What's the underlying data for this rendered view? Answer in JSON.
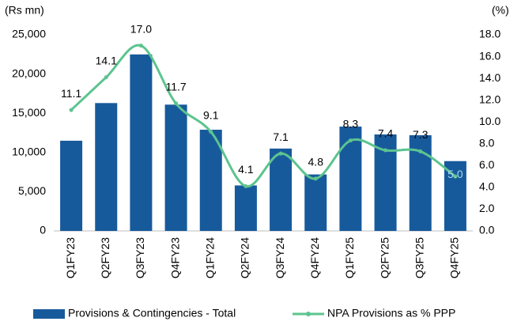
{
  "chart_data": {
    "type": "bar_line",
    "y_label": "(Rs mn)",
    "y2_label": "(%)",
    "categories": [
      "Q1FY23",
      "Q2FY23",
      "Q3FY23",
      "Q4FY23",
      "Q1FY24",
      "Q2FY24",
      "Q3FY24",
      "Q4FY24",
      "Q1FY25",
      "Q2FY25",
      "Q3FY25",
      "Q4FY25"
    ],
    "series": [
      {
        "name": "Provisions & Contingencies - Total",
        "type": "bar",
        "color": "#175a9c",
        "values": [
          11500,
          16300,
          22500,
          16100,
          12900,
          5800,
          10500,
          7200,
          13300,
          12300,
          12200,
          8900
        ]
      },
      {
        "name": "NPA Provisions as % PPP",
        "type": "line",
        "axis": "y2",
        "color": "#5cc48e",
        "values": [
          11.1,
          14.1,
          17.0,
          11.7,
          9.1,
          4.1,
          7.1,
          4.8,
          8.3,
          7.4,
          7.3,
          5.0
        ],
        "value_labels": [
          "11.1",
          "14.1",
          "17.0",
          "11.7",
          "9.1",
          "4.1",
          "7.1",
          "4.8",
          "8.3",
          "7.4",
          "7.3",
          "5.0"
        ]
      }
    ],
    "ylim": [
      0,
      25000
    ],
    "yticks": [
      0,
      {
        "value": 5000,
        "label": "5,000"
      },
      {
        "value": 10000,
        "label": "10,000"
      },
      {
        "value": 15000,
        "label": "15,000"
      },
      {
        "value": 20000,
        "label": "20,000"
      },
      {
        "value": 25000,
        "label": "25,000"
      }
    ],
    "y2lim": [
      0,
      18
    ],
    "y2ticks": [
      {
        "value": 0,
        "label": "0.0"
      },
      {
        "value": 2,
        "label": "2.0"
      },
      {
        "value": 4,
        "label": "4.0"
      },
      {
        "value": 6,
        "label": "6.0"
      },
      {
        "value": 8,
        "label": "8.0"
      },
      {
        "value": 10,
        "label": "10.0"
      },
      {
        "value": 12,
        "label": "12.0"
      },
      {
        "value": 14,
        "label": "14.0"
      },
      {
        "value": 16,
        "label": "16.0"
      },
      {
        "value": 18,
        "label": "18.0"
      }
    ],
    "grid": false
  }
}
